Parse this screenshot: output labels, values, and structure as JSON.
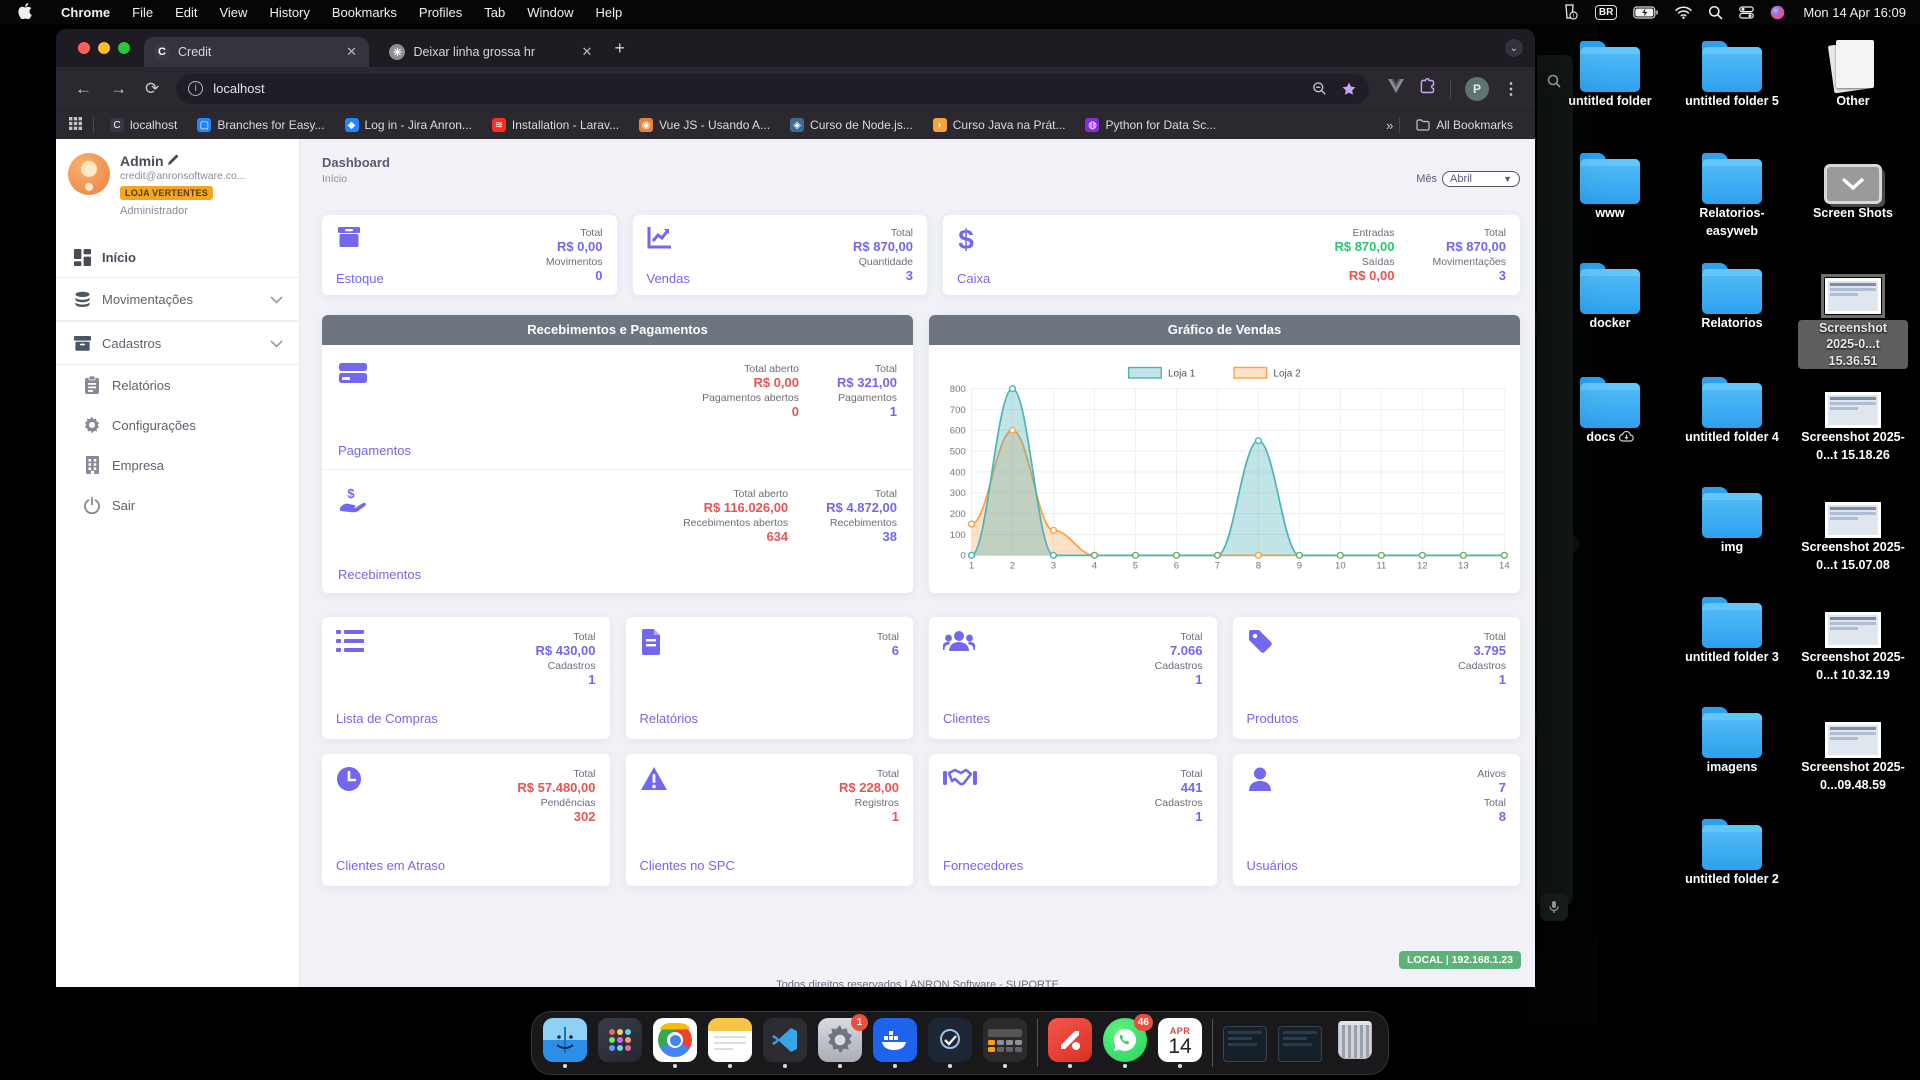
{
  "menubar": {
    "app_menu": "Chrome",
    "items": [
      "File",
      "Edit",
      "View",
      "History",
      "Bookmarks",
      "Profiles",
      "Tab",
      "Window",
      "Help"
    ],
    "status": {
      "input_source": "BR",
      "clock": "Mon 14 Apr 16:09"
    }
  },
  "browser": {
    "tabs": [
      {
        "title": "Credit",
        "favicon_letter": "C",
        "favicon_bg": "#3b3844",
        "active": true
      },
      {
        "title": "Deixar linha grossa hr",
        "favicon_letter": "✳",
        "favicon_bg": "#8e8e93",
        "active": false
      }
    ],
    "url": "localhost",
    "profile_initial": "P",
    "bookmarks": [
      {
        "label": "localhost",
        "color": "#3b3844",
        "glyph": "C"
      },
      {
        "label": "Branches for Easy...",
        "color": "#2684ff",
        "glyph": "▢"
      },
      {
        "label": "Log in - Jira Anron...",
        "color": "#2684ff",
        "glyph": "◆"
      },
      {
        "label": "Installation - Larav...",
        "color": "#ff2d20",
        "glyph": "≋"
      },
      {
        "label": "Vue JS - Usando A...",
        "color": "#e8833a",
        "glyph": "◉"
      },
      {
        "label": "Curso de Node.js...",
        "color": "#3c6e94",
        "glyph": "◈"
      },
      {
        "label": "Curso Java na Prát...",
        "color": "#f7a23b",
        "glyph": "◗"
      },
      {
        "label": "Python for Data Sc...",
        "color": "#8a2be2",
        "glyph": "◍"
      }
    ],
    "overflow_glyph": "»",
    "all_bookmarks": "All Bookmarks"
  },
  "app": {
    "user": {
      "name": "Admin",
      "email": "credit@anronsoftware.co...",
      "store_badge": "LOJA VERTENTES",
      "role": "Administrador"
    },
    "nav": [
      {
        "label": "Início",
        "icon": "grid-icon",
        "style": "first"
      },
      {
        "label": "Movimentações",
        "icon": "coins-icon",
        "style": "acc",
        "chevron": true
      },
      {
        "label": "Cadastros",
        "icon": "archive-icon",
        "style": "acc",
        "chevron": true
      },
      {
        "label": "Relatórios",
        "icon": "clipboard-icon",
        "style": "sub"
      },
      {
        "label": "Configurações",
        "icon": "gear-icon",
        "style": "sub"
      },
      {
        "label": "Empresa",
        "icon": "building-icon",
        "style": "sub"
      },
      {
        "label": "Sair",
        "icon": "power-icon",
        "style": "sub"
      }
    ],
    "page": {
      "title": "Dashboard",
      "breadcrumb": "Início"
    },
    "month": {
      "label": "Mês",
      "value": "Abril"
    },
    "cards_row1": [
      {
        "label": "Estoque",
        "icon": "box-icon",
        "wide": false,
        "stats": [
          [
            {
              "label": "Total",
              "value": "R$ 0,00",
              "color": "purple"
            },
            {
              "label": "Movimentos",
              "value": "0",
              "color": "purple"
            }
          ]
        ]
      },
      {
        "label": "Vendas",
        "icon": "chart-line-icon",
        "wide": false,
        "stats": [
          [
            {
              "label": "Total",
              "value": "R$ 870,00",
              "color": "purple"
            },
            {
              "label": "Quantidade",
              "value": "3",
              "color": "purple"
            }
          ]
        ]
      },
      {
        "label": "Caixa",
        "icon": "dollar-icon",
        "wide": true,
        "stats": [
          [
            {
              "label": "Entradas",
              "value": "R$ 870,00",
              "color": "green"
            },
            {
              "label": "Saídas",
              "value": "R$ 0,00",
              "color": "red"
            }
          ],
          [
            {
              "label": "Total",
              "value": "R$ 870,00",
              "color": "purple"
            },
            {
              "label": "Movimentações",
              "value": "3",
              "color": "purple"
            }
          ]
        ]
      }
    ],
    "payments_panel": {
      "title": "Recebimentos e Pagamentos",
      "rows": [
        {
          "label": "Pagamentos",
          "icon": "credit-card-icon",
          "stats": [
            [
              {
                "label": "Total aberto",
                "value": "R$ 0,00",
                "color": "red"
              },
              {
                "label": "Pagamentos abertos",
                "value": "0",
                "color": "red"
              }
            ],
            [
              {
                "label": "Total",
                "value": "R$ 321,00",
                "color": "purple"
              },
              {
                "label": "Pagamentos",
                "value": "1",
                "color": "purple"
              }
            ]
          ]
        },
        {
          "label": "Recebimentos",
          "icon": "hand-money-icon",
          "stats": [
            [
              {
                "label": "Total aberto",
                "value": "R$ 116.026,00",
                "color": "red"
              },
              {
                "label": "Recebimentos abertos",
                "value": "634",
                "color": "red"
              }
            ],
            [
              {
                "label": "Total",
                "value": "R$ 4.872,00",
                "color": "purple"
              },
              {
                "label": "Recebimentos",
                "value": "38",
                "color": "purple"
              }
            ]
          ]
        }
      ]
    },
    "chart_panel_title": "Gráfico de Vendas",
    "cards_row3": [
      {
        "label": "Lista de Compras",
        "icon": "list-icon",
        "stats": [
          [
            {
              "label": "Total",
              "value": "R$ 430,00",
              "color": "purple"
            },
            {
              "label": "Cadastros",
              "value": "1",
              "color": "purple"
            }
          ]
        ]
      },
      {
        "label": "Relatórios",
        "icon": "file-icon",
        "stats": [
          [
            {
              "label": "Total",
              "value": "6",
              "color": "purple"
            }
          ]
        ]
      },
      {
        "label": "Clientes",
        "icon": "users-icon",
        "stats": [
          [
            {
              "label": "Total",
              "value": "7.066",
              "color": "purple"
            },
            {
              "label": "Cadastros",
              "value": "1",
              "color": "purple"
            }
          ]
        ]
      },
      {
        "label": "Produtos",
        "icon": "tag-icon",
        "stats": [
          [
            {
              "label": "Total",
              "value": "3.795",
              "color": "purple"
            },
            {
              "label": "Cadastros",
              "value": "1",
              "color": "purple"
            }
          ]
        ]
      }
    ],
    "cards_row4": [
      {
        "label": "Clientes em Atraso",
        "icon": "clock-icon",
        "stats": [
          [
            {
              "label": "Total",
              "value": "R$ 57.480,00",
              "color": "red"
            },
            {
              "label": "Pendências",
              "value": "302",
              "color": "red"
            }
          ]
        ]
      },
      {
        "label": "Clientes no SPC",
        "icon": "warning-icon",
        "stats": [
          [
            {
              "label": "Total",
              "value": "R$ 228,00",
              "color": "red"
            },
            {
              "label": "Registros",
              "value": "1",
              "color": "red"
            }
          ]
        ]
      },
      {
        "label": "Fornecedores",
        "icon": "handshake-icon",
        "stats": [
          [
            {
              "label": "Total",
              "value": "441",
              "color": "purple"
            },
            {
              "label": "Cadastros",
              "value": "1",
              "color": "purple"
            }
          ]
        ]
      },
      {
        "label": "Usuários",
        "icon": "user-icon",
        "stats": [
          [
            {
              "label": "Ativos",
              "value": "7",
              "color": "purple"
            },
            {
              "label": "Total",
              "value": "8",
              "color": "purple"
            }
          ]
        ]
      }
    ],
    "footer": "Todos direitos reservados | ANRON Software - SUPORTE",
    "env_badge": "LOCAL | 192.168.1.23"
  },
  "chart_data": {
    "type": "area",
    "title": "Gráfico de Vendas",
    "x": [
      1,
      2,
      3,
      4,
      5,
      6,
      7,
      8,
      9,
      10,
      11,
      12,
      13,
      14
    ],
    "series": [
      {
        "name": "Loja 1",
        "color": "#4db3b8",
        "fill": "rgba(77,179,184,0.35)",
        "values": [
          0,
          800,
          0,
          0,
          0,
          0,
          0,
          550,
          0,
          0,
          0,
          0,
          0,
          0
        ]
      },
      {
        "name": "Loja 2",
        "color": "#ff9f43",
        "fill": "rgba(255,159,67,0.30)",
        "values": [
          150,
          600,
          120,
          0,
          0,
          0,
          0,
          0,
          0,
          0,
          0,
          0,
          0,
          0
        ]
      }
    ],
    "ylim": [
      0,
      800
    ],
    "ytick_step": 100,
    "grid": true,
    "legend_position": "top",
    "baseline_marker_color": "#67b168"
  },
  "desktop": {
    "icons": [
      {
        "col": 0,
        "row": 0,
        "label": "untitled folder",
        "kind": "folder"
      },
      {
        "col": 1,
        "row": 0,
        "label": "untitled folder 5",
        "kind": "folder"
      },
      {
        "col": 2,
        "row": 0,
        "label": "Other",
        "kind": "papers"
      },
      {
        "col": 0,
        "row": 1,
        "label": "www",
        "kind": "folder"
      },
      {
        "col": 1,
        "row": 1,
        "label": "Relatorios-easyweb",
        "kind": "folder"
      },
      {
        "col": 2,
        "row": 1,
        "label": "Screen Shots",
        "kind": "screenshot-app"
      },
      {
        "col": 0,
        "row": 2,
        "label": "docker",
        "kind": "folder"
      },
      {
        "col": 1,
        "row": 2,
        "label": "Relatorios",
        "kind": "folder"
      },
      {
        "col": 2,
        "row": 2,
        "label": "Screenshot 2025-0...t 15.36.51",
        "kind": "thumb",
        "selected": true
      },
      {
        "col": 0,
        "row": 3,
        "label": "docs",
        "kind": "folder",
        "cloud": true
      },
      {
        "col": 1,
        "row": 3,
        "label": "untitled folder 4",
        "kind": "folder"
      },
      {
        "col": 2,
        "row": 3,
        "label": "Screenshot 2025-0...t 15.18.26",
        "kind": "thumb"
      },
      {
        "col": 1,
        "row": 4,
        "label": "img",
        "kind": "folder"
      },
      {
        "col": 2,
        "row": 4,
        "label": "Screenshot 2025-0...t 15.07.08",
        "kind": "thumb"
      },
      {
        "col": 1,
        "row": 5,
        "label": "untitled folder 3",
        "kind": "folder"
      },
      {
        "col": 2,
        "row": 5,
        "label": "Screenshot 2025-0...t 10.32.19",
        "kind": "thumb"
      },
      {
        "col": 1,
        "row": 6,
        "label": "imagens",
        "kind": "folder"
      },
      {
        "col": 2,
        "row": 6,
        "label": "Screenshot 2025-0...09.48.59",
        "kind": "thumb"
      },
      {
        "col": 1,
        "row": 7,
        "label": "untitled folder 2",
        "kind": "folder"
      }
    ]
  },
  "dock": {
    "items": [
      {
        "icon": "finder-icon",
        "running": true
      },
      {
        "icon": "launchpad-icon",
        "running": false
      },
      {
        "icon": "chrome-icon",
        "running": true
      },
      {
        "icon": "notes-icon",
        "running": true
      },
      {
        "icon": "vscode-icon",
        "running": true
      },
      {
        "icon": "settings-icon",
        "running": true,
        "badge": "1"
      },
      {
        "icon": "docker-icon",
        "running": true
      },
      {
        "icon": "dark-app-icon",
        "running": true
      },
      {
        "icon": "calculator-icon",
        "running": true
      },
      {
        "divider": true
      },
      {
        "icon": "red-app-icon",
        "running": true
      },
      {
        "icon": "whatsapp-icon",
        "running": true,
        "badge": "46"
      },
      {
        "icon": "calendar-icon",
        "running": true,
        "cal_month": "APR",
        "cal_day": "14"
      },
      {
        "divider": true
      },
      {
        "icon": "minimized-window-icon",
        "running": false
      },
      {
        "icon": "minimized-window-icon",
        "running": false
      },
      {
        "icon": "trash-icon",
        "running": false
      }
    ]
  }
}
